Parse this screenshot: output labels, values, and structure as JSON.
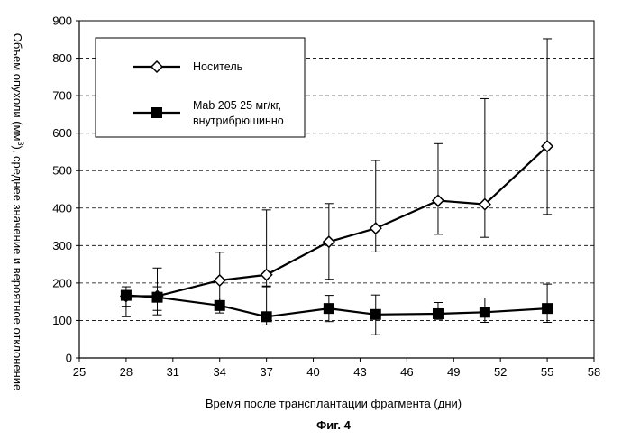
{
  "chart_data": {
    "type": "line",
    "xlabel": "Время после трансплантации фрагмента (дни)",
    "ylabel": "Объем опухоли (мм³), среднее значение и вероятное отклонение",
    "ylabel_parts": [
      "Объем опухоли (мм",
      "3",
      "), среднее значение и вероятное отклонение"
    ],
    "caption": "Фиг. 4",
    "xlim": [
      25,
      58
    ],
    "ylim": [
      0,
      900
    ],
    "xticks": [
      25,
      28,
      31,
      34,
      37,
      40,
      43,
      46,
      49,
      52,
      55,
      58
    ],
    "yticks": [
      0,
      100,
      200,
      300,
      400,
      500,
      600,
      700,
      800,
      900
    ],
    "grid": "horizontal dashed",
    "legend_placement": "top-left",
    "series": [
      {
        "name": "Носитель",
        "marker": "diamond-open",
        "x": [
          28,
          30,
          34,
          37,
          41,
          44,
          48,
          51,
          55
        ],
        "y": [
          165,
          165,
          207,
          222,
          310,
          346,
          420,
          410,
          565
        ],
        "err_low": [
          110,
          115,
          150,
          192,
          210,
          283,
          330,
          322,
          383
        ],
        "err_high": [
          180,
          240,
          282,
          395,
          412,
          527,
          572,
          692,
          852
        ]
      },
      {
        "name": "Mab 205 25 мг/кг, внутрибрюшинно",
        "name_lines": [
          "Mab 205 25 мг/кг,",
          "внутрибрюшинно"
        ],
        "marker": "square-filled",
        "x": [
          28,
          30,
          34,
          37,
          41,
          44,
          48,
          51,
          55
        ],
        "y": [
          167,
          162,
          140,
          110,
          132,
          116,
          118,
          122,
          132
        ],
        "err_low": [
          138,
          127,
          120,
          88,
          97,
          62,
          103,
          95,
          95
        ],
        "err_high": [
          190,
          190,
          160,
          190,
          167,
          168,
          148,
          160,
          197
        ]
      }
    ],
    "colors": {
      "line": "#000000",
      "grid": "#000000",
      "background": "#ffffff"
    }
  }
}
